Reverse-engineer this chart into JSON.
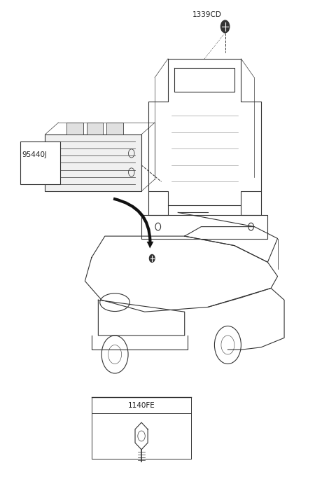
{
  "background_color": "#ffffff",
  "label_1339CD": "1339CD",
  "label_95440J": "95440J",
  "label_1140FE": "1140FE",
  "line_color": "#333333",
  "lw": 0.8
}
